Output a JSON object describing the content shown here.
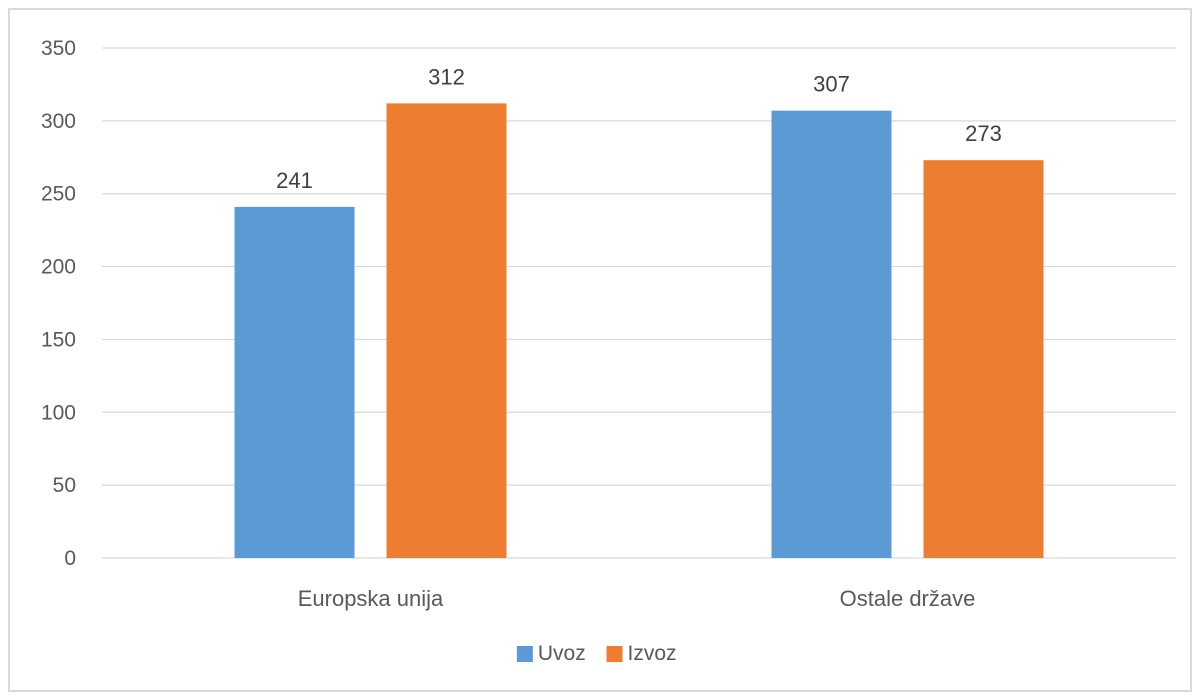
{
  "chart_data": {
    "type": "bar",
    "categories": [
      "Europska unija",
      "Ostale države"
    ],
    "series": [
      {
        "name": "Uvoz",
        "values": [
          241,
          307
        ],
        "color": "#5b9bd5"
      },
      {
        "name": "Izvoz",
        "values": [
          312,
          273
        ],
        "color": "#ed7d31"
      }
    ],
    "title": "",
    "xlabel": "",
    "ylabel": "",
    "ylim": [
      0,
      350
    ],
    "yticks": [
      0,
      50,
      100,
      150,
      200,
      250,
      300,
      350
    ],
    "grid": true,
    "data_labels": true,
    "legend_position": "bottom"
  },
  "colors": {
    "gridline": "#d9d9d9",
    "axis_text": "#595959",
    "border": "#d9d9d9"
  }
}
